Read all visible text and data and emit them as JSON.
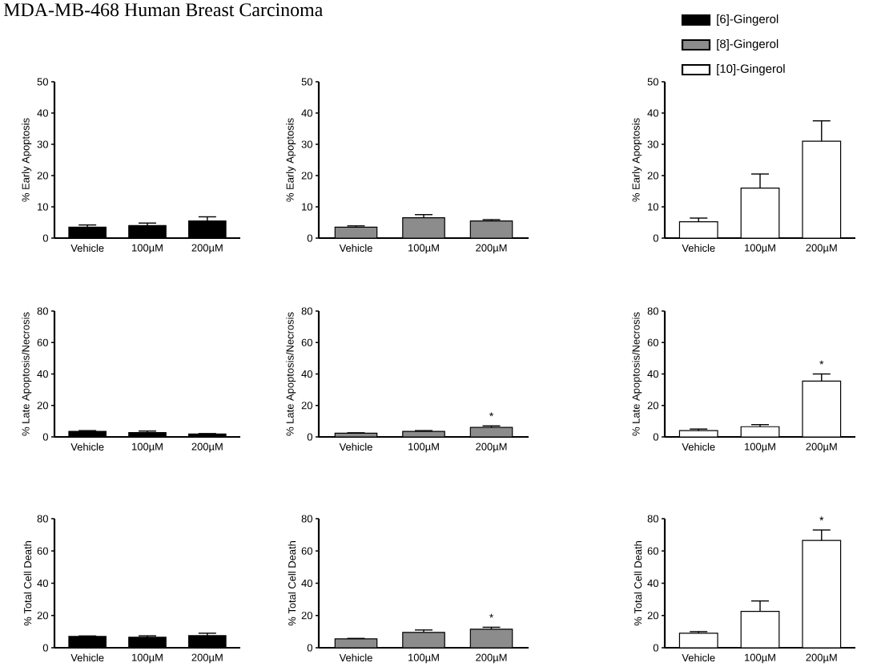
{
  "chart_data": [
    {
      "type": "bar",
      "title": "MDA-MB-468 Human Breast Carcinoma",
      "ylabel": "% Early Apoptosis",
      "categories": [
        "Vehicle",
        "100µM",
        "200µM"
      ],
      "ylim": [
        0,
        50
      ],
      "yticks": [
        0,
        10,
        20,
        30,
        40,
        50
      ],
      "legend": "top right",
      "series": [
        {
          "name": "[6]-Gingerol",
          "color": "#000000",
          "values": [
            3.5,
            4,
            5.5
          ],
          "errors": [
            0.7,
            0.8,
            1.3
          ]
        }
      ]
    },
    {
      "type": "bar",
      "ylabel": "% Early Apoptosis",
      "categories": [
        "Vehicle",
        "100µM",
        "200µM"
      ],
      "ylim": [
        0,
        50
      ],
      "yticks": [
        0,
        10,
        20,
        30,
        40,
        50
      ],
      "legend": "top right",
      "series": [
        {
          "name": "[8]-Gingerol",
          "color": "#8c8c8c",
          "values": [
            3.5,
            6.5,
            5.5
          ],
          "errors": [
            0.4,
            1,
            0.4
          ]
        }
      ]
    },
    {
      "type": "bar",
      "ylabel": "% Early Apoptosis",
      "categories": [
        "Vehicle",
        "100µM",
        "200µM"
      ],
      "ylim": [
        0,
        50
      ],
      "yticks": [
        0,
        10,
        20,
        30,
        40,
        50
      ],
      "legend": "top",
      "series": [
        {
          "name": "[10]-Gingerol",
          "color": "#ffffff",
          "values": [
            5.2,
            16,
            31
          ],
          "errors": [
            1.2,
            4.5,
            6.5
          ]
        }
      ]
    },
    {
      "type": "bar",
      "ylabel": "% Late Apoptosis/Necrosis",
      "categories": [
        "Vehicle",
        "100µM",
        "200µM"
      ],
      "ylim": [
        0,
        80
      ],
      "yticks": [
        0,
        20,
        40,
        60,
        80
      ],
      "series": [
        {
          "color": "#000000",
          "values": [
            3.5,
            2.8,
            1.8
          ],
          "errors": [
            0.5,
            0.9,
            0.3
          ]
        }
      ]
    },
    {
      "type": "bar",
      "ylabel": "% Late Apoptosis/Necrosis",
      "categories": [
        "Vehicle",
        "100µM",
        "200µM"
      ],
      "ylim": [
        0,
        80
      ],
      "yticks": [
        0,
        20,
        40,
        60,
        80
      ],
      "annotations": [
        "*"
      ],
      "series": [
        {
          "color": "#8c8c8c",
          "values": [
            2.3,
            3.5,
            6
          ],
          "errors": [
            0.3,
            0.5,
            1
          ]
        }
      ]
    },
    {
      "type": "bar",
      "ylabel": "% Late Apoptosis/Necrosis",
      "categories": [
        "Vehicle",
        "100µM",
        "200µM"
      ],
      "ylim": [
        0,
        80
      ],
      "yticks": [
        0,
        20,
        40,
        60,
        80
      ],
      "annotations": [
        "*"
      ],
      "series": [
        {
          "color": "#ffffff",
          "values": [
            4,
            6.5,
            35.5
          ],
          "errors": [
            1,
            1.3,
            4.5
          ]
        }
      ]
    },
    {
      "type": "bar",
      "ylabel": "% Total Cell Death",
      "categories": [
        "Vehicle",
        "100µM",
        "200µM"
      ],
      "ylim": [
        0,
        80
      ],
      "yticks": [
        0,
        20,
        40,
        60,
        80
      ],
      "series": [
        {
          "color": "#000000",
          "values": [
            7,
            6.5,
            7.5
          ],
          "errors": [
            0.3,
            0.9,
            1.5
          ]
        }
      ]
    },
    {
      "type": "bar",
      "ylabel": "% Total Cell Death",
      "categories": [
        "Vehicle",
        "100µM",
        "200µM"
      ],
      "ylim": [
        0,
        80
      ],
      "yticks": [
        0,
        20,
        40,
        60,
        80
      ],
      "annotations": [
        "*"
      ],
      "series": [
        {
          "color": "#8c8c8c",
          "values": [
            5.5,
            9.5,
            11.5
          ],
          "errors": [
            0.3,
            1.5,
            1.2
          ]
        }
      ]
    },
    {
      "type": "bar",
      "ylabel": "% Total Cell Death",
      "categories": [
        "Vehicle",
        "100µM",
        "200µM"
      ],
      "ylim": [
        0,
        80
      ],
      "yticks": [
        0,
        20,
        40,
        60,
        80
      ],
      "annotations": [
        "*"
      ],
      "series": [
        {
          "color": "#ffffff",
          "values": [
            9,
            22.5,
            66.5
          ],
          "errors": [
            1,
            6.5,
            6.5
          ]
        }
      ]
    }
  ]
}
